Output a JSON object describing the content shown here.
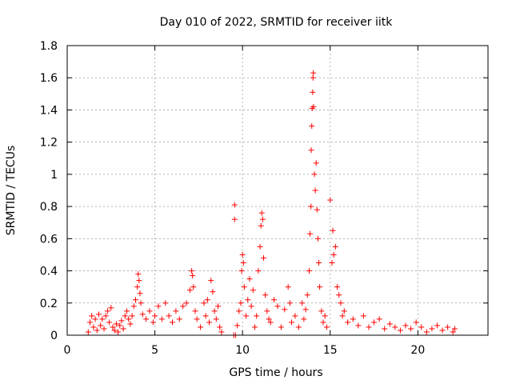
{
  "chart_data": {
    "type": "scatter",
    "title": "Day 010 of 2022, SRMTID for receiver iitk",
    "xlabel": "GPS time / hours",
    "ylabel": "SRMTID / TECUs",
    "xlim": [
      0,
      24
    ],
    "ylim": [
      0,
      1.8
    ],
    "xticks": [
      0,
      5,
      10,
      15,
      20
    ],
    "xtick_labels": [
      "0",
      "5",
      "10",
      "15",
      "20"
    ],
    "yticks": [
      0,
      0.2,
      0.4,
      0.6,
      0.8,
      1,
      1.2,
      1.4,
      1.6,
      1.8
    ],
    "ytick_labels": [
      "0",
      "0.2",
      "0.4",
      "0.6",
      "0.8",
      "1",
      "1.2",
      "1.4",
      "1.6",
      "1.8"
    ],
    "grid": true,
    "marker": "+",
    "series": [
      {
        "name": "SRMTID",
        "color": "#ff0000",
        "points": [
          [
            1.2,
            0.02
          ],
          [
            1.3,
            0.08
          ],
          [
            1.4,
            0.12
          ],
          [
            1.5,
            0.05
          ],
          [
            1.6,
            0.1
          ],
          [
            1.7,
            0.03
          ],
          [
            1.8,
            0.13
          ],
          [
            1.9,
            0.06
          ],
          [
            2.0,
            0.1
          ],
          [
            2.1,
            0.04
          ],
          [
            2.2,
            0.12
          ],
          [
            2.3,
            0.15
          ],
          [
            2.4,
            0.08
          ],
          [
            2.5,
            0.17
          ],
          [
            2.6,
            0.05
          ],
          [
            2.7,
            0.03
          ],
          [
            2.8,
            0.07
          ],
          [
            2.9,
            0.02
          ],
          [
            3.0,
            0.06
          ],
          [
            3.1,
            0.09
          ],
          [
            3.2,
            0.04
          ],
          [
            3.3,
            0.12
          ],
          [
            3.4,
            0.15
          ],
          [
            3.5,
            0.1
          ],
          [
            3.6,
            0.07
          ],
          [
            3.7,
            0.12
          ],
          [
            3.8,
            0.18
          ],
          [
            3.9,
            0.22
          ],
          [
            4.0,
            0.3
          ],
          [
            4.05,
            0.38
          ],
          [
            4.1,
            0.34
          ],
          [
            4.15,
            0.26
          ],
          [
            4.2,
            0.2
          ],
          [
            4.3,
            0.13
          ],
          [
            4.5,
            0.1
          ],
          [
            4.7,
            0.15
          ],
          [
            4.9,
            0.08
          ],
          [
            5.0,
            0.12
          ],
          [
            5.2,
            0.18
          ],
          [
            5.4,
            0.1
          ],
          [
            5.6,
            0.2
          ],
          [
            5.8,
            0.12
          ],
          [
            6.0,
            0.08
          ],
          [
            6.2,
            0.15
          ],
          [
            6.4,
            0.1
          ],
          [
            6.6,
            0.18
          ],
          [
            6.8,
            0.2
          ],
          [
            7.0,
            0.28
          ],
          [
            7.1,
            0.4
          ],
          [
            7.15,
            0.37
          ],
          [
            7.2,
            0.3
          ],
          [
            7.3,
            0.15
          ],
          [
            7.4,
            0.1
          ],
          [
            7.6,
            0.05
          ],
          [
            7.8,
            0.2
          ],
          [
            7.9,
            0.12
          ],
          [
            8.0,
            0.22
          ],
          [
            8.1,
            0.08
          ],
          [
            8.2,
            0.34
          ],
          [
            8.3,
            0.27
          ],
          [
            8.4,
            0.15
          ],
          [
            8.5,
            0.1
          ],
          [
            8.6,
            0.18
          ],
          [
            8.7,
            0.05
          ],
          [
            8.8,
            0.02
          ],
          [
            9.5,
            0.0
          ],
          [
            9.6,
            0.0
          ],
          [
            9.55,
            0.72
          ],
          [
            9.55,
            0.81
          ],
          [
            9.7,
            0.06
          ],
          [
            9.8,
            0.15
          ],
          [
            9.9,
            0.2
          ],
          [
            9.95,
            0.4
          ],
          [
            10.0,
            0.5
          ],
          [
            10.05,
            0.45
          ],
          [
            10.1,
            0.3
          ],
          [
            10.2,
            0.12
          ],
          [
            10.3,
            0.22
          ],
          [
            10.4,
            0.35
          ],
          [
            10.5,
            0.18
          ],
          [
            10.6,
            0.28
          ],
          [
            10.7,
            0.05
          ],
          [
            10.8,
            0.12
          ],
          [
            10.9,
            0.4
          ],
          [
            11.0,
            0.55
          ],
          [
            11.05,
            0.68
          ],
          [
            11.1,
            0.76
          ],
          [
            11.15,
            0.72
          ],
          [
            11.2,
            0.48
          ],
          [
            11.3,
            0.25
          ],
          [
            11.4,
            0.15
          ],
          [
            11.5,
            0.1
          ],
          [
            11.6,
            0.08
          ],
          [
            11.8,
            0.22
          ],
          [
            12.0,
            0.18
          ],
          [
            12.2,
            0.05
          ],
          [
            12.4,
            0.16
          ],
          [
            12.6,
            0.3
          ],
          [
            12.7,
            0.2
          ],
          [
            12.8,
            0.08
          ],
          [
            13.0,
            0.12
          ],
          [
            13.2,
            0.05
          ],
          [
            13.4,
            0.2
          ],
          [
            13.5,
            0.1
          ],
          [
            13.6,
            0.16
          ],
          [
            13.7,
            0.25
          ],
          [
            13.8,
            0.4
          ],
          [
            13.85,
            0.63
          ],
          [
            13.9,
            0.8
          ],
          [
            13.92,
            1.15
          ],
          [
            13.95,
            1.3
          ],
          [
            13.97,
            1.41
          ],
          [
            14.0,
            1.51
          ],
          [
            14.02,
            1.6
          ],
          [
            14.04,
            1.63
          ],
          [
            14.05,
            1.42
          ],
          [
            14.1,
            1.0
          ],
          [
            14.15,
            0.9
          ],
          [
            14.2,
            1.07
          ],
          [
            14.25,
            0.78
          ],
          [
            14.3,
            0.6
          ],
          [
            14.35,
            0.45
          ],
          [
            14.4,
            0.3
          ],
          [
            14.5,
            0.15
          ],
          [
            14.6,
            0.08
          ],
          [
            14.7,
            0.12
          ],
          [
            14.8,
            0.05
          ],
          [
            15.0,
            0.84
          ],
          [
            15.1,
            0.45
          ],
          [
            15.15,
            0.65
          ],
          [
            15.2,
            0.5
          ],
          [
            15.3,
            0.55
          ],
          [
            15.4,
            0.3
          ],
          [
            15.5,
            0.25
          ],
          [
            15.6,
            0.2
          ],
          [
            15.7,
            0.12
          ],
          [
            15.8,
            0.15
          ],
          [
            16.0,
            0.08
          ],
          [
            16.3,
            0.1
          ],
          [
            16.6,
            0.06
          ],
          [
            16.9,
            0.12
          ],
          [
            17.2,
            0.05
          ],
          [
            17.5,
            0.08
          ],
          [
            17.8,
            0.1
          ],
          [
            18.1,
            0.04
          ],
          [
            18.4,
            0.07
          ],
          [
            18.7,
            0.05
          ],
          [
            19.0,
            0.03
          ],
          [
            19.3,
            0.06
          ],
          [
            19.6,
            0.04
          ],
          [
            19.9,
            0.08
          ],
          [
            20.2,
            0.05
          ],
          [
            20.5,
            0.02
          ],
          [
            20.8,
            0.04
          ],
          [
            21.1,
            0.06
          ],
          [
            21.4,
            0.03
          ],
          [
            21.7,
            0.05
          ],
          [
            22.0,
            0.02
          ],
          [
            22.1,
            0.04
          ]
        ]
      }
    ]
  }
}
